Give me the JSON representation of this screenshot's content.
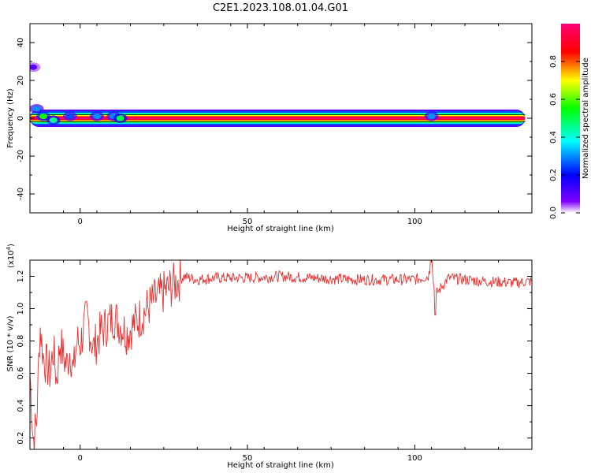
{
  "title": "C2E1.2023.108.01.04.G01",
  "chart_data": [
    {
      "type": "heatmap",
      "xlabel": "Height of straight line (km)",
      "ylabel": "Frequency (Hz)",
      "xlim": [
        -15,
        135
      ],
      "ylim": [
        -50,
        50
      ],
      "xticks": [
        0,
        50,
        100
      ],
      "yticks": [
        -40,
        -20,
        0,
        20,
        40
      ],
      "colorbar": {
        "label": "Normalized spectral amplitude",
        "range": [
          0,
          1
        ],
        "ticks": [
          "0.0",
          "0.2",
          "0.4",
          "0.6",
          "0.8"
        ],
        "colormap": [
          "#ffffff",
          "#7f00ff",
          "#0000ff",
          "#00ffff",
          "#00ff00",
          "#ffff00",
          "#ff0000",
          "#ff0077"
        ]
      },
      "ridge": {
        "frequency_hz": 0,
        "x_start": -15,
        "x_end": 133,
        "peak_amplitude": 1.0
      },
      "scatter_blobs": [
        {
          "x": -14,
          "y": 27,
          "amplitude": 0.1
        },
        {
          "x": -13,
          "y": 5,
          "amplitude": 0.3
        },
        {
          "x": -11,
          "y": 1,
          "amplitude": 0.55
        },
        {
          "x": -8,
          "y": -1,
          "amplitude": 0.45
        },
        {
          "x": -3,
          "y": 1,
          "amplitude": 0.25
        },
        {
          "x": 5,
          "y": 1,
          "amplitude": 0.3
        },
        {
          "x": 10,
          "y": 1,
          "amplitude": 0.3
        },
        {
          "x": 12,
          "y": 0,
          "amplitude": 0.5
        },
        {
          "x": 105,
          "y": 1,
          "amplitude": 0.3
        }
      ]
    },
    {
      "type": "line",
      "xlabel": "Height of straight line (km)",
      "ylabel": "SNR (10 * v/v)",
      "y_multiplier": "(x10",
      "y_multiplier_exponent": "4",
      "y_multiplier_close": ")",
      "xlim": [
        -15,
        135
      ],
      "ylim": [
        0.13,
        1.3
      ],
      "xticks": [
        0,
        50,
        100
      ],
      "yticks": [
        "0.2",
        "0.4",
        "0.6",
        "0.8",
        "1.0",
        "1.2"
      ],
      "line_color": "#e83030",
      "series": [
        {
          "x": [
            -15,
            -14,
            -13,
            -12,
            -11,
            -10,
            -9,
            -8,
            -7,
            -6,
            -5,
            -4,
            -3,
            -2,
            -1,
            0,
            2,
            4,
            6,
            8,
            10,
            12,
            14,
            16,
            18,
            20,
            22,
            25,
            28,
            31,
            35,
            40,
            50,
            60,
            70,
            80,
            90,
            100,
            104,
            105,
            106,
            110,
            120,
            130,
            135
          ],
          "y": [
            0.6,
            0.18,
            0.3,
            0.9,
            0.7,
            0.65,
            0.6,
            0.75,
            0.55,
            0.8,
            0.7,
            0.65,
            0.75,
            0.6,
            0.8,
            0.78,
            0.95,
            0.75,
            0.85,
            0.9,
            0.95,
            0.9,
            0.85,
            0.9,
            0.95,
            1.0,
            1.05,
            1.1,
            1.15,
            1.2,
            1.18,
            1.19,
            1.19,
            1.2,
            1.19,
            1.18,
            1.18,
            1.18,
            1.2,
            1.28,
            1.08,
            1.19,
            1.17,
            1.16,
            1.17
          ]
        }
      ]
    }
  ]
}
